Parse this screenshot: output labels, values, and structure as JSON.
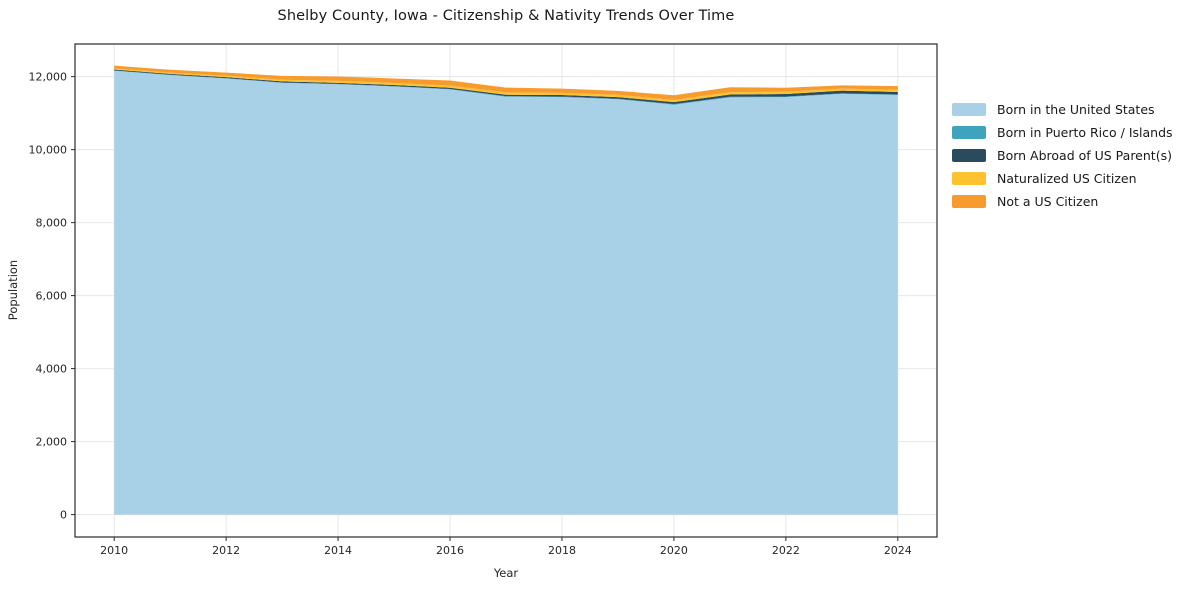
{
  "title": "Shelby County, Iowa - Citizenship & Nativity Trends Over Time",
  "chart_data": {
    "type": "area",
    "stacked": true,
    "title": "Shelby County, Iowa - Citizenship & Nativity Trends Over Time",
    "xlabel": "Year",
    "ylabel": "Population",
    "grid": true,
    "legend_position": "right-outside",
    "xlim": [
      2009.3,
      2024.7
    ],
    "ylim": [
      -614,
      12894
    ],
    "x": [
      2010,
      2011,
      2012,
      2013,
      2014,
      2015,
      2016,
      2017,
      2018,
      2019,
      2020,
      2021,
      2022,
      2023,
      2024
    ],
    "x_ticks": {
      "values": [
        2010,
        2012,
        2014,
        2016,
        2018,
        2020,
        2022,
        2024
      ],
      "labels": [
        "2010",
        "2012",
        "2014",
        "2016",
        "2018",
        "2020",
        "2022",
        "2024"
      ]
    },
    "y_ticks": {
      "values": [
        0,
        2000,
        4000,
        6000,
        8000,
        10000,
        12000
      ],
      "labels": [
        "0",
        "2,000",
        "4,000",
        "6,000",
        "8,000",
        "10,000",
        "12,000"
      ]
    },
    "series": [
      {
        "name": "Born in the United States",
        "color": "#a8d0e6",
        "values": [
          12160,
          12040,
          11950,
          11830,
          11790,
          11730,
          11650,
          11450,
          11440,
          11380,
          11230,
          11430,
          11440,
          11530,
          11500
        ]
      },
      {
        "name": "Born in Puerto Rico / Islands",
        "color": "#3fa3bd",
        "values": [
          10,
          10,
          10,
          10,
          10,
          10,
          10,
          15,
          15,
          15,
          20,
          20,
          15,
          10,
          10
        ]
      },
      {
        "name": "Born Abroad of US Parent(s)",
        "color": "#2a4a5e",
        "values": [
          25,
          25,
          25,
          30,
          30,
          30,
          35,
          40,
          40,
          45,
          50,
          60,
          70,
          75,
          70
        ]
      },
      {
        "name": "Naturalized US Citizen",
        "color": "#fcc230",
        "values": [
          30,
          35,
          40,
          45,
          55,
          55,
          60,
          65,
          60,
          60,
          60,
          65,
          60,
          55,
          60
        ]
      },
      {
        "name": "Not a US Citizen",
        "color": "#f79b2e",
        "values": [
          75,
          80,
          85,
          105,
          120,
          125,
          140,
          130,
          115,
          110,
          130,
          135,
          110,
          90,
          100
        ]
      }
    ],
    "style": {
      "grid_color": "#e7e7e7",
      "spine_color": "#2a2a2a",
      "tick_color": "#2a2a2a",
      "tick_label_color": "#262626",
      "background": "#ffffff"
    }
  }
}
